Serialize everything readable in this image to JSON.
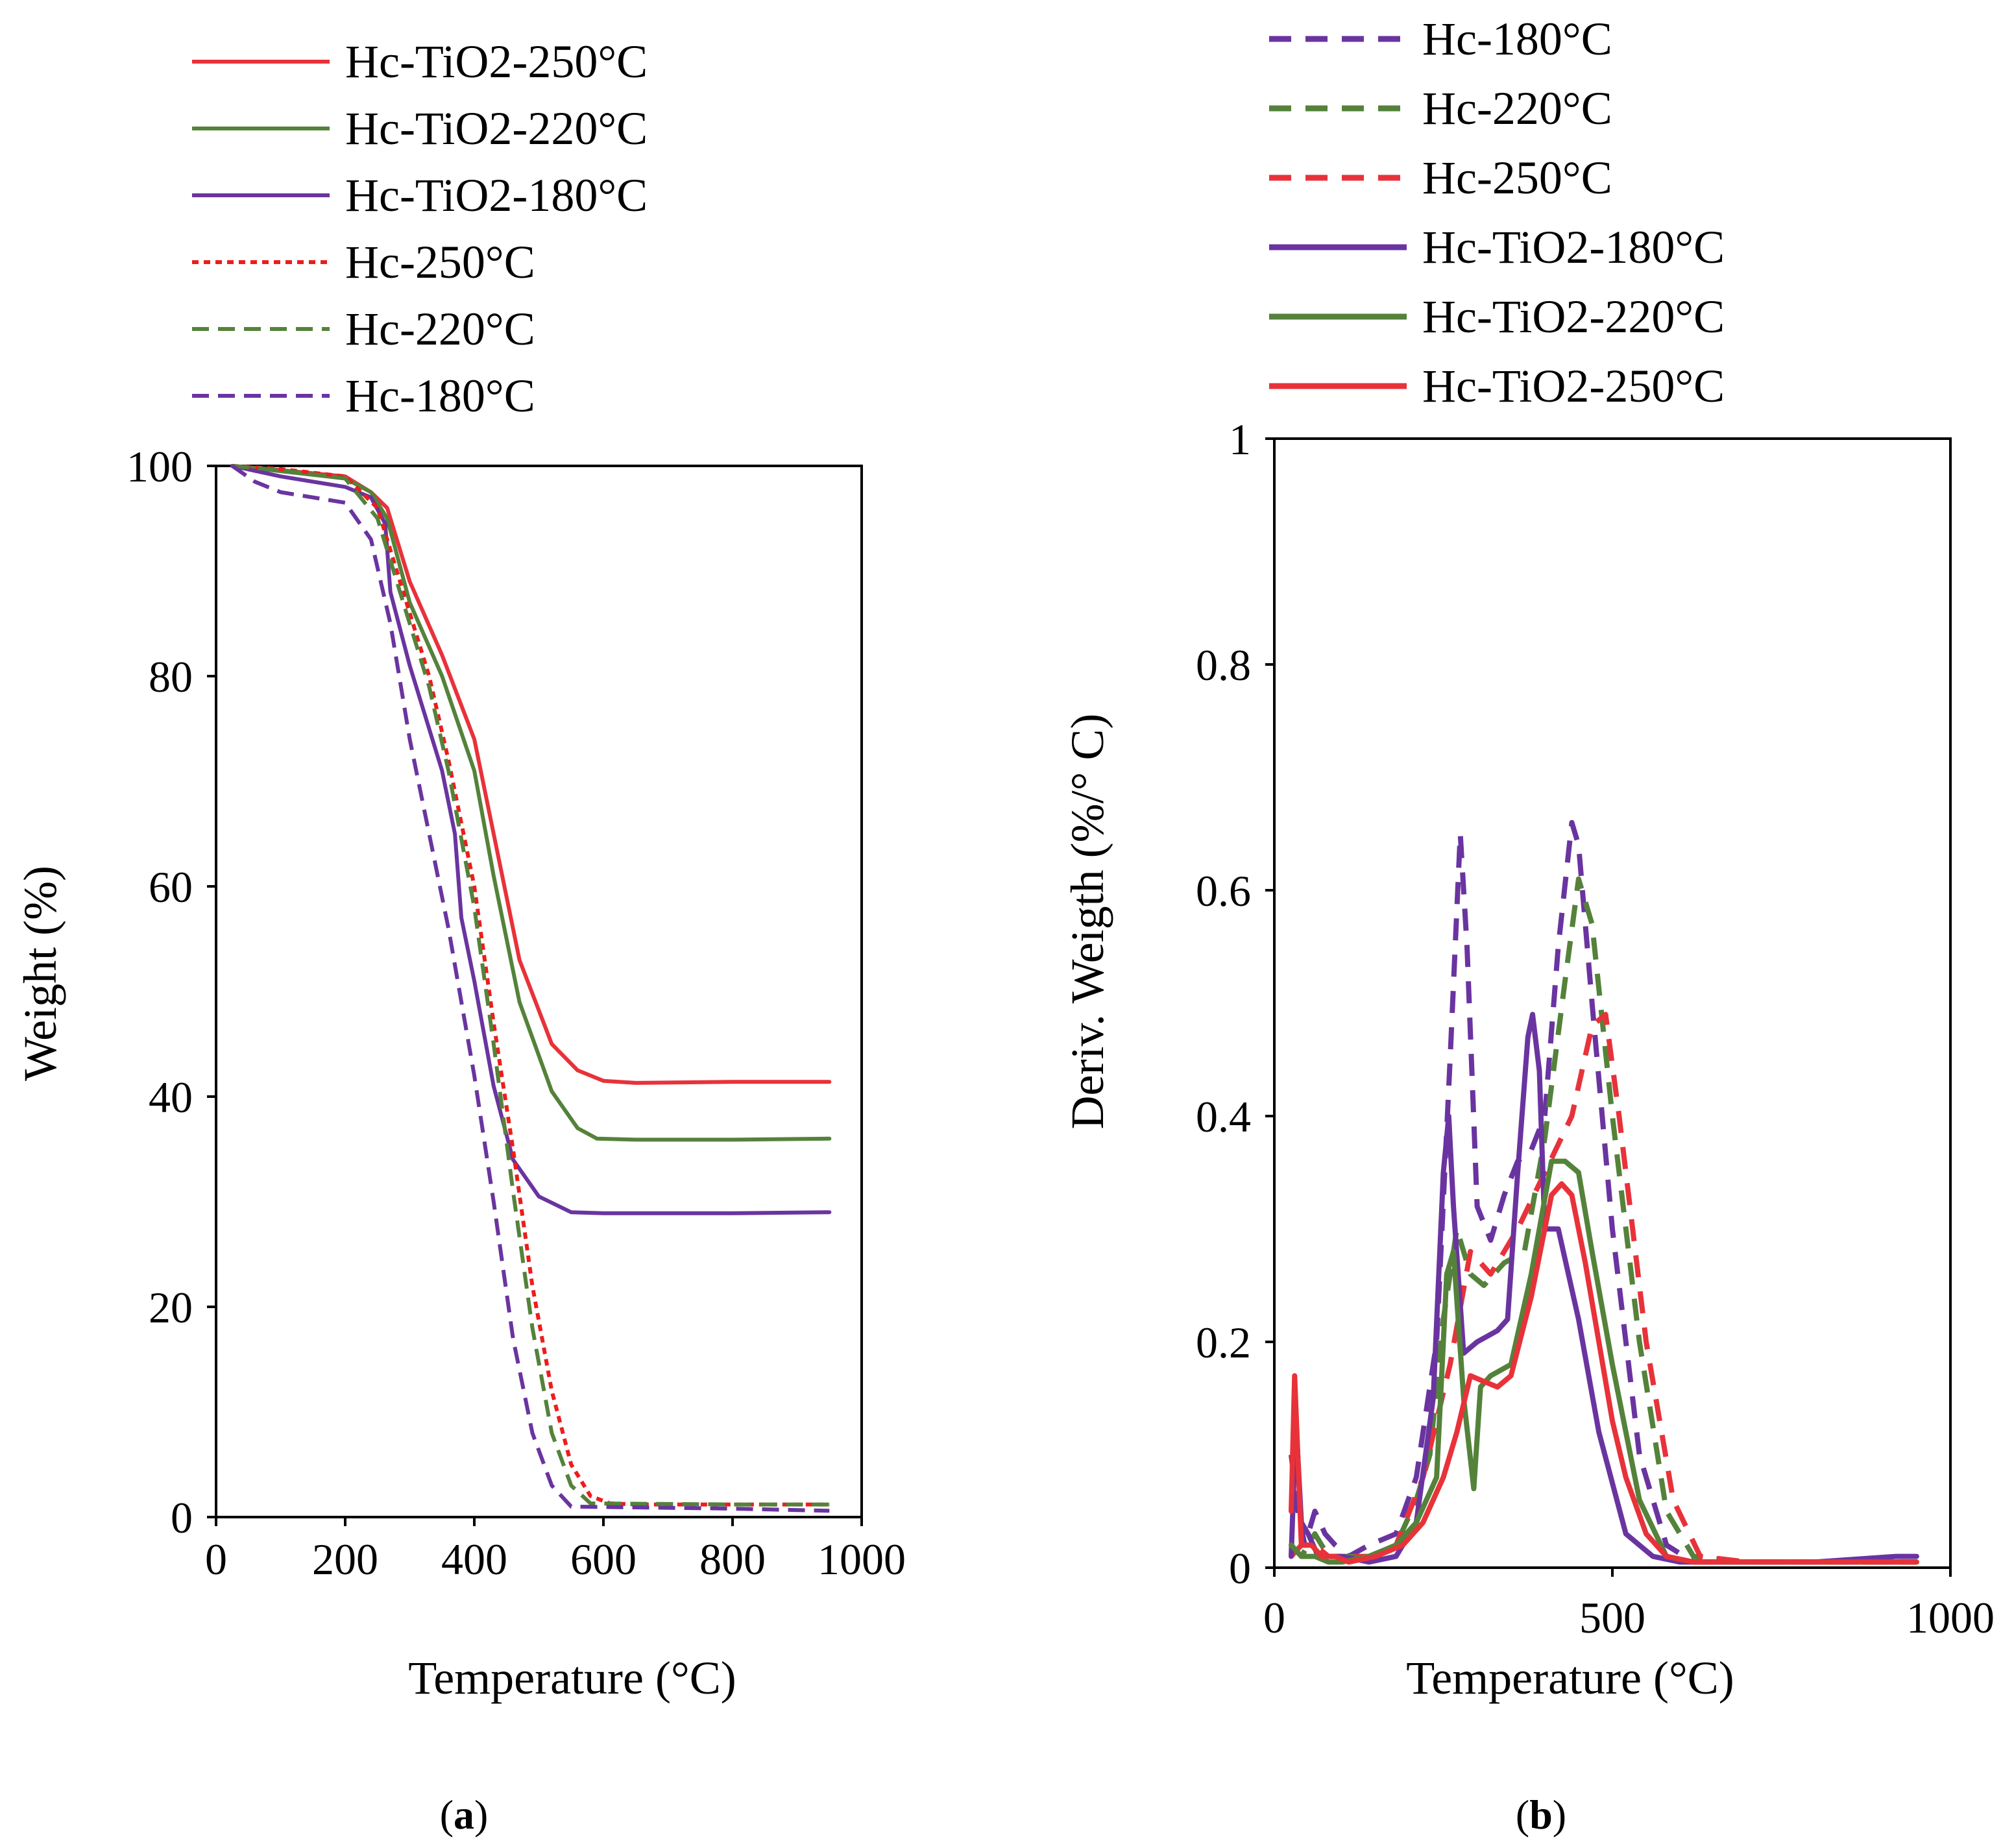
{
  "colors": {
    "red": "#e8323a",
    "green": "#54823a",
    "purple": "#6a34a0",
    "dotted_red": "#ee1c1c"
  },
  "panel_a_label": {
    "open": "(",
    "letter": "a",
    "close": ")"
  },
  "panel_b_label": {
    "open": "(",
    "letter": "b",
    "close": ")"
  },
  "chart_data": [
    {
      "id": "a",
      "type": "line",
      "xlabel": "Temperature (°C)",
      "ylabel": "Weight (%)",
      "xlim": [
        0,
        1000
      ],
      "ylim": [
        0,
        100
      ],
      "xticks": [
        0,
        200,
        400,
        600,
        800,
        1000
      ],
      "yticks": [
        0,
        20,
        40,
        60,
        80,
        100
      ],
      "xtick_labels": [
        "0",
        "200",
        "400",
        "600",
        "800",
        "1000"
      ],
      "ytick_labels": [
        "0",
        "20",
        "40",
        "60",
        "80",
        "100"
      ],
      "legend_position": "above",
      "series": [
        {
          "name": "Hc-TiO2-250°C",
          "color": "#e8323a",
          "style": "solid",
          "x": [
            25,
            100,
            200,
            240,
            265,
            300,
            350,
            400,
            430,
            470,
            520,
            560,
            600,
            650,
            800,
            950
          ],
          "y": [
            100,
            99.6,
            99,
            97.5,
            96,
            89,
            82,
            74,
            65,
            53,
            45,
            42.5,
            41.5,
            41.3,
            41.4,
            41.4
          ]
        },
        {
          "name": "Hc-TiO2-220°C",
          "color": "#54823a",
          "style": "solid",
          "x": [
            25,
            100,
            200,
            240,
            265,
            300,
            350,
            400,
            430,
            470,
            520,
            560,
            590,
            650,
            800,
            950
          ],
          "y": [
            100,
            99.5,
            98.8,
            97.5,
            95,
            87,
            80,
            71,
            61,
            49,
            40.5,
            37,
            36,
            35.9,
            35.9,
            36
          ]
        },
        {
          "name": "Hc-TiO2-180°C",
          "color": "#6a34a0",
          "style": "solid",
          "x": [
            25,
            100,
            200,
            240,
            262,
            270,
            300,
            350,
            370,
            380,
            400,
            430,
            460,
            500,
            550,
            600,
            800,
            950
          ],
          "y": [
            100,
            99,
            98,
            97,
            94.5,
            88,
            81,
            71,
            65,
            57,
            51,
            41,
            34,
            30.5,
            29,
            28.9,
            28.9,
            29
          ]
        },
        {
          "name": "Hc-250°C",
          "color": "#ee1c1c",
          "style": "dotted",
          "x": [
            25,
            100,
            200,
            250,
            290,
            330,
            360,
            400,
            430,
            460,
            490,
            520,
            550,
            580,
            610,
            650,
            800,
            950
          ],
          "y": [
            100,
            99.7,
            99,
            96,
            88,
            80,
            72,
            60,
            47,
            35,
            22,
            12,
            5,
            2,
            1.3,
            1.2,
            1.2,
            1.2
          ]
        },
        {
          "name": "Hc-220°C",
          "color": "#54823a",
          "style": "dashed",
          "x": [
            25,
            100,
            200,
            250,
            290,
            330,
            360,
            400,
            430,
            460,
            490,
            520,
            550,
            580,
            800,
            950
          ],
          "y": [
            100,
            99.6,
            98.8,
            95,
            87,
            79,
            71,
            58,
            45,
            31,
            18,
            8,
            3,
            1.3,
            1.2,
            1.2
          ]
        },
        {
          "name": "Hc-180°C",
          "color": "#6a34a0",
          "style": "dashed",
          "x": [
            25,
            60,
            100,
            200,
            240,
            270,
            300,
            330,
            360,
            400,
            430,
            460,
            490,
            520,
            550,
            800,
            950
          ],
          "y": [
            100,
            98.5,
            97.5,
            96.5,
            93,
            85,
            74,
            65,
            56,
            42,
            30,
            17,
            8,
            3,
            1,
            0.8,
            0.6
          ]
        }
      ]
    },
    {
      "id": "b",
      "type": "line",
      "xlabel": "Temperature (°C)",
      "ylabel": "Deriv. Weigth (%/° C)",
      "xlim": [
        0,
        1000
      ],
      "ylim": [
        0,
        1
      ],
      "xticks": [
        0,
        500,
        1000
      ],
      "yticks": [
        0,
        0.2,
        0.4,
        0.6,
        0.8,
        1
      ],
      "xtick_labels": [
        "0",
        "500",
        "1000"
      ],
      "ytick_labels": [
        "0",
        "0.2",
        "0.4",
        "0.6",
        "0.8",
        "1"
      ],
      "legend_position": "above",
      "series": [
        {
          "name": "Hc-180°C",
          "color": "#6a34a0",
          "style": "dashed",
          "x": [
            25,
            35,
            45,
            60,
            75,
            90,
            110,
            140,
            180,
            210,
            240,
            260,
            275,
            285,
            300,
            320,
            340,
            360,
            380,
            400,
            420,
            440,
            450,
            470,
            500,
            540,
            580,
            620,
            700,
            800,
            900,
            950
          ],
          "y": [
            0.1,
            0.05,
            0.02,
            0.05,
            0.03,
            0.02,
            0.01,
            0.02,
            0.03,
            0.08,
            0.2,
            0.45,
            0.65,
            0.55,
            0.32,
            0.29,
            0.33,
            0.36,
            0.37,
            0.4,
            0.55,
            0.66,
            0.64,
            0.5,
            0.3,
            0.1,
            0.02,
            0.005,
            0.005,
            0.005,
            0.005,
            0.005
          ]
        },
        {
          "name": "Hc-220°C",
          "color": "#54823a",
          "style": "dashed",
          "x": [
            25,
            40,
            60,
            80,
            100,
            140,
            180,
            210,
            230,
            250,
            270,
            290,
            310,
            340,
            370,
            400,
            430,
            450,
            470,
            500,
            540,
            580,
            620,
            700,
            900,
            950
          ],
          "y": [
            0.02,
            0.01,
            0.03,
            0.01,
            0.01,
            0.01,
            0.02,
            0.06,
            0.1,
            0.22,
            0.3,
            0.26,
            0.25,
            0.27,
            0.28,
            0.38,
            0.52,
            0.61,
            0.57,
            0.4,
            0.2,
            0.05,
            0.01,
            0.005,
            0.005,
            0.005
          ]
        },
        {
          "name": "Hc-250°C",
          "color": "#e8323a",
          "style": "dashed",
          "x": [
            25,
            40,
            60,
            80,
            100,
            140,
            180,
            220,
            260,
            290,
            320,
            360,
            400,
            440,
            470,
            490,
            510,
            550,
            590,
            630,
            700,
            900,
            950
          ],
          "y": [
            0.01,
            0.02,
            0.02,
            0.01,
            0.01,
            0.01,
            0.02,
            0.08,
            0.18,
            0.28,
            0.26,
            0.3,
            0.35,
            0.4,
            0.48,
            0.49,
            0.4,
            0.2,
            0.06,
            0.01,
            0.005,
            0.005,
            0.005
          ]
        },
        {
          "name": "Hc-TiO2-180°C",
          "color": "#6a34a0",
          "style": "solid",
          "x": [
            25,
            32,
            40,
            50,
            65,
            80,
            100,
            140,
            180,
            210,
            235,
            250,
            258,
            265,
            280,
            300,
            330,
            345,
            360,
            375,
            382,
            392,
            400,
            420,
            450,
            480,
            520,
            560,
            600,
            650,
            800,
            920,
            950
          ],
          "y": [
            0.01,
            0.13,
            0.04,
            0.03,
            0.01,
            0.01,
            0.01,
            0.005,
            0.01,
            0.04,
            0.15,
            0.35,
            0.4,
            0.32,
            0.19,
            0.2,
            0.21,
            0.22,
            0.35,
            0.47,
            0.49,
            0.44,
            0.3,
            0.3,
            0.22,
            0.12,
            0.03,
            0.01,
            0.005,
            0.005,
            0.005,
            0.01,
            0.01
          ]
        },
        {
          "name": "Hc-TiO2-220°C",
          "color": "#54823a",
          "style": "solid",
          "x": [
            25,
            40,
            60,
            80,
            100,
            140,
            180,
            210,
            240,
            255,
            265,
            280,
            295,
            305,
            320,
            350,
            380,
            410,
            430,
            450,
            470,
            500,
            540,
            580,
            620,
            700,
            900,
            950
          ],
          "y": [
            0.02,
            0.01,
            0.01,
            0.005,
            0.005,
            0.01,
            0.02,
            0.04,
            0.08,
            0.26,
            0.28,
            0.15,
            0.07,
            0.16,
            0.17,
            0.18,
            0.26,
            0.36,
            0.36,
            0.35,
            0.28,
            0.18,
            0.06,
            0.01,
            0.005,
            0.005,
            0.005,
            0.005
          ]
        },
        {
          "name": "Hc-TiO2-250°C",
          "color": "#e8323a",
          "style": "solid",
          "x": [
            25,
            30,
            40,
            55,
            70,
            90,
            110,
            150,
            190,
            220,
            250,
            270,
            290,
            310,
            330,
            350,
            380,
            410,
            425,
            440,
            460,
            480,
            500,
            520,
            550,
            580,
            620,
            700,
            800,
            950
          ],
          "y": [
            0.05,
            0.17,
            0.02,
            0.02,
            0.01,
            0.01,
            0.005,
            0.01,
            0.02,
            0.04,
            0.08,
            0.12,
            0.17,
            0.165,
            0.16,
            0.17,
            0.24,
            0.33,
            0.34,
            0.33,
            0.27,
            0.2,
            0.13,
            0.08,
            0.03,
            0.01,
            0.005,
            0.005,
            0.005,
            0.005
          ]
        }
      ]
    }
  ]
}
